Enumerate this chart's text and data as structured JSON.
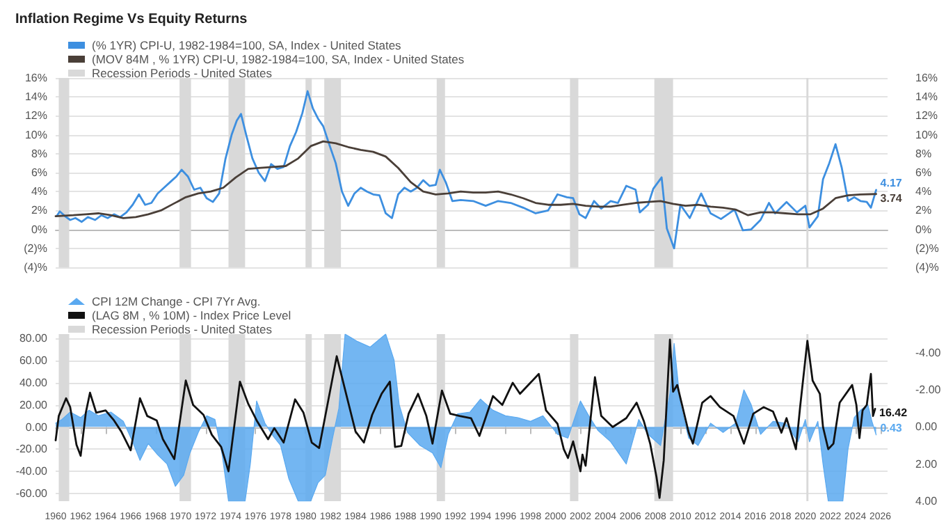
{
  "chart_data": [
    {
      "type": "line",
      "title": "Inflation Regime Vs Equity Returns",
      "xlim": [
        "1960-01",
        "2026-08"
      ],
      "ylim": [
        -4,
        16
      ],
      "yticks": [
        {
          "value": -4,
          "label": "(4)%"
        },
        {
          "value": -2,
          "label": "(2)%"
        },
        {
          "value": 0,
          "label": "0%"
        },
        {
          "value": 2,
          "label": "2%"
        },
        {
          "value": 4,
          "label": "4%"
        },
        {
          "value": 6,
          "label": "6%"
        },
        {
          "value": 8,
          "label": "8%"
        },
        {
          "value": 10,
          "label": "10%"
        },
        {
          "value": 12,
          "label": "12%"
        },
        {
          "value": 14,
          "label": "14%"
        },
        {
          "value": 16,
          "label": "16%"
        }
      ],
      "y2lim": [
        -4,
        16
      ],
      "y2ticks": [
        {
          "value": -4,
          "label": "(4)%"
        },
        {
          "value": -2,
          "label": "(2)%"
        },
        {
          "value": 0,
          "label": "0%"
        },
        {
          "value": 2,
          "label": "2%"
        },
        {
          "value": 4,
          "label": "4%"
        },
        {
          "value": 6,
          "label": "6%"
        },
        {
          "value": 8,
          "label": "8%"
        },
        {
          "value": 10,
          "label": "10%"
        },
        {
          "value": 12,
          "label": "12%"
        },
        {
          "value": 14,
          "label": "14%"
        },
        {
          "value": 16,
          "label": "16%"
        }
      ],
      "tick_labels": "y",
      "grid": "y",
      "legend": "top left",
      "marker": "none",
      "line_style": "solid",
      "series": [
        {
          "name": "(% 1YR) CPI-U, 1982-1984=100, SA, Index - United States",
          "color": "#3d8fe0",
          "x": [
            "1960-02",
            "1960-05",
            "1960-10",
            "1961-03",
            "1961-08",
            "1962-02",
            "1962-08",
            "1963-03",
            "1963-09",
            "1964-03",
            "1964-09",
            "1965-03",
            "1965-09",
            "1966-03",
            "1966-09",
            "1967-03",
            "1967-09",
            "1968-03",
            "1968-09",
            "1969-03",
            "1969-09",
            "1970-02",
            "1970-08",
            "1971-02",
            "1971-08",
            "1972-02",
            "1972-08",
            "1973-02",
            "1973-08",
            "1974-02",
            "1974-07",
            "1974-11",
            "1975-04",
            "1975-10",
            "1976-04",
            "1976-10",
            "1977-04",
            "1977-10",
            "1978-04",
            "1978-10",
            "1979-04",
            "1979-10",
            "1980-03",
            "1980-08",
            "1981-01",
            "1981-06",
            "1981-12",
            "1982-06",
            "1982-12",
            "1983-06",
            "1983-12",
            "1984-06",
            "1984-12",
            "1985-06",
            "1985-12",
            "1986-06",
            "1986-12",
            "1987-06",
            "1987-12",
            "1988-06",
            "1988-12",
            "1989-06",
            "1989-12",
            "1990-06",
            "1990-10",
            "1991-04",
            "1991-10",
            "1992-06",
            "1993-06",
            "1994-06",
            "1995-06",
            "1996-06",
            "1997-06",
            "1998-06",
            "1999-06",
            "2000-03",
            "2000-12",
            "2001-06",
            "2001-12",
            "2002-06",
            "2003-02",
            "2003-09",
            "2004-06",
            "2005-01",
            "2005-09",
            "2006-06",
            "2006-10",
            "2007-06",
            "2007-11",
            "2008-07",
            "2008-12",
            "2009-07",
            "2010-01",
            "2010-10",
            "2011-09",
            "2012-06",
            "2013-04",
            "2014-05",
            "2015-01",
            "2015-09",
            "2016-06",
            "2017-02",
            "2017-08",
            "2018-07",
            "2019-05",
            "2020-01",
            "2020-05",
            "2021-01",
            "2021-06",
            "2021-12",
            "2022-06",
            "2022-12",
            "2023-06",
            "2023-12",
            "2024-06",
            "2024-12",
            "2025-04",
            "2025-09"
          ],
          "values": [
            1.4,
            1.9,
            1.4,
            1.0,
            1.2,
            0.8,
            1.3,
            1.0,
            1.5,
            1.2,
            1.6,
            1.3,
            1.8,
            2.6,
            3.7,
            2.6,
            2.8,
            3.8,
            4.4,
            5.0,
            5.6,
            6.3,
            5.6,
            4.2,
            4.4,
            3.3,
            2.9,
            3.8,
            7.4,
            10.0,
            11.5,
            12.2,
            10.0,
            7.5,
            6.0,
            5.1,
            6.9,
            6.4,
            6.6,
            8.8,
            10.3,
            12.3,
            14.6,
            12.8,
            11.7,
            10.9,
            8.9,
            7.0,
            4.0,
            2.5,
            3.8,
            4.4,
            4.0,
            3.7,
            3.6,
            1.7,
            1.2,
            3.7,
            4.4,
            4.0,
            4.4,
            5.2,
            4.6,
            4.7,
            6.3,
            4.9,
            3.0,
            3.1,
            3.0,
            2.5,
            3.0,
            2.8,
            2.3,
            1.7,
            2.0,
            3.7,
            3.4,
            3.3,
            1.6,
            1.2,
            3.0,
            2.2,
            3.0,
            2.8,
            4.6,
            4.2,
            1.8,
            2.6,
            4.3,
            5.5,
            0.1,
            -2.0,
            2.6,
            1.2,
            3.8,
            1.7,
            1.1,
            2.1,
            -0.1,
            0.0,
            1.0,
            2.8,
            1.7,
            2.9,
            1.8,
            2.5,
            0.2,
            1.4,
            5.3,
            7.0,
            9.0,
            6.5,
            3.0,
            3.4,
            3.0,
            2.9,
            2.3,
            4.17
          ],
          "value_labels": [
            null,
            null,
            null,
            null,
            null,
            null,
            null,
            null,
            null,
            null,
            null,
            null,
            null,
            null,
            null,
            null,
            null,
            null,
            null,
            null,
            null,
            null,
            null,
            null,
            null,
            null,
            null,
            null,
            null,
            null,
            null,
            null,
            null,
            null,
            null,
            null,
            null,
            null,
            null,
            null,
            null,
            null,
            null,
            null,
            null,
            null,
            null,
            null,
            null,
            null,
            null,
            null,
            null,
            null,
            null,
            null,
            null,
            null,
            null,
            null,
            null,
            null,
            null,
            null,
            null,
            null,
            null,
            null,
            null,
            null,
            null,
            null,
            null,
            null,
            null,
            null,
            null,
            null,
            null,
            null,
            null,
            null,
            null,
            null,
            null,
            null,
            null,
            null,
            null,
            null,
            null,
            null,
            null,
            null,
            null,
            null,
            null,
            null,
            null,
            null,
            null,
            null,
            null,
            null,
            null,
            null,
            null,
            null,
            null,
            null,
            null,
            null,
            null,
            null,
            null,
            null,
            null,
            "4.17"
          ]
        },
        {
          "name": "(MOV 84M , % 1YR) CPI-U, 1982-1984=100, SA, Index - United States",
          "color": "#4a3f38",
          "x": [
            "1960-01",
            "1961-06",
            "1962-06",
            "1963-06",
            "1964-06",
            "1965-06",
            "1966-06",
            "1967-06",
            "1968-06",
            "1969-06",
            "1970-06",
            "1971-06",
            "1972-06",
            "1973-06",
            "1974-06",
            "1975-06",
            "1976-06",
            "1977-06",
            "1978-06",
            "1979-06",
            "1980-06",
            "1981-06",
            "1982-06",
            "1983-06",
            "1984-06",
            "1985-06",
            "1986-06",
            "1987-06",
            "1988-06",
            "1989-06",
            "1990-06",
            "1991-06",
            "1992-06",
            "1993-06",
            "1994-06",
            "1995-06",
            "1996-06",
            "1997-06",
            "1998-06",
            "1999-06",
            "2000-06",
            "2001-06",
            "2002-06",
            "2003-06",
            "2004-06",
            "2005-06",
            "2006-06",
            "2007-06",
            "2008-06",
            "2009-06",
            "2010-06",
            "2011-06",
            "2012-06",
            "2013-06",
            "2014-06",
            "2015-06",
            "2016-06",
            "2017-06",
            "2018-06",
            "2019-06",
            "2020-06",
            "2021-06",
            "2022-06",
            "2023-06",
            "2024-06",
            "2025-09"
          ],
          "values": [
            1.4,
            1.5,
            1.6,
            1.7,
            1.5,
            1.2,
            1.3,
            1.6,
            2.0,
            2.7,
            3.4,
            3.8,
            4.0,
            4.4,
            5.5,
            6.4,
            6.5,
            6.6,
            6.7,
            7.5,
            8.8,
            9.3,
            9.1,
            8.7,
            8.4,
            8.2,
            7.7,
            6.5,
            5.0,
            4.0,
            3.7,
            3.8,
            4.0,
            3.9,
            3.9,
            4.0,
            3.7,
            3.3,
            2.8,
            2.6,
            2.6,
            2.7,
            2.5,
            2.4,
            2.4,
            2.6,
            2.8,
            2.9,
            3.0,
            2.7,
            2.5,
            2.6,
            2.4,
            2.3,
            2.1,
            1.5,
            1.8,
            1.8,
            1.7,
            1.6,
            1.6,
            2.2,
            3.3,
            3.6,
            3.7,
            3.74
          ],
          "value_labels": [
            null,
            null,
            null,
            null,
            null,
            null,
            null,
            null,
            null,
            null,
            null,
            null,
            null,
            null,
            null,
            null,
            null,
            null,
            null,
            null,
            null,
            null,
            null,
            null,
            null,
            null,
            null,
            null,
            null,
            null,
            null,
            null,
            null,
            null,
            null,
            null,
            null,
            null,
            null,
            null,
            null,
            null,
            null,
            null,
            null,
            null,
            null,
            null,
            null,
            null,
            null,
            null,
            null,
            null,
            null,
            null,
            null,
            null,
            null,
            null,
            null,
            null,
            null,
            null,
            null,
            "3.74"
          ]
        }
      ],
      "bands": [
        {
          "axis": "x",
          "from": "1960-04",
          "to": "1961-02",
          "label": "Recession Periods - United States",
          "color": "#d9d9d9"
        },
        {
          "axis": "x",
          "from": "1969-12",
          "to": "1970-11",
          "color": "#d9d9d9"
        },
        {
          "axis": "x",
          "from": "1973-11",
          "to": "1975-03",
          "color": "#d9d9d9"
        },
        {
          "axis": "x",
          "from": "1980-01",
          "to": "1980-07",
          "color": "#d9d9d9"
        },
        {
          "axis": "x",
          "from": "1981-07",
          "to": "1982-11",
          "color": "#d9d9d9"
        },
        {
          "axis": "x",
          "from": "1990-07",
          "to": "1991-03",
          "color": "#d9d9d9"
        },
        {
          "axis": "x",
          "from": "2001-03",
          "to": "2001-11",
          "color": "#d9d9d9"
        },
        {
          "axis": "x",
          "from": "2007-12",
          "to": "2009-06",
          "color": "#d9d9d9"
        },
        {
          "axis": "x",
          "from": "2020-02",
          "to": "2020-04",
          "color": "#d9d9d9"
        }
      ]
    },
    {
      "type": "line",
      "xlim": [
        "1960-01",
        "2026-08"
      ],
      "xticks": [
        "1960",
        "1962",
        "1964",
        "1966",
        "1968",
        "1970",
        "1972",
        "1974",
        "1976",
        "1978",
        "1980",
        "1982",
        "1984",
        "1986",
        "1988",
        "1990",
        "1992",
        "1994",
        "1996",
        "1998",
        "2000",
        "2002",
        "2004",
        "2006",
        "2008",
        "2010",
        "2012",
        "2014",
        "2016",
        "2018",
        "2020",
        "2022",
        "2024",
        "2026"
      ],
      "ylim": [
        -67,
        84
      ],
      "yticks": [
        {
          "value": -60,
          "label": "-60.00"
        },
        {
          "value": -40,
          "label": "-40.00"
        },
        {
          "value": -20,
          "label": "-20.00"
        },
        {
          "value": 0,
          "label": "0.00"
        },
        {
          "value": 20,
          "label": "20.00"
        },
        {
          "value": 40,
          "label": "40.00"
        },
        {
          "value": 60,
          "label": "60.00"
        },
        {
          "value": 80,
          "label": "80.00"
        }
      ],
      "y2lim": [
        4,
        -5
      ],
      "y2ticks": [
        {
          "value": -4,
          "label": "-4.00"
        },
        {
          "value": -2,
          "label": "-2.00"
        },
        {
          "value": 0,
          "label": "0.00"
        },
        {
          "value": 2,
          "label": "2.00"
        },
        {
          "value": 4,
          "label": "4.00"
        }
      ],
      "grid": "y",
      "legend": "top left",
      "marker": "none",
      "line_style": "solid",
      "series": [
        {
          "name": "CPI 12M Change - CPI 7Yr Avg.",
          "type": "area",
          "axis": "y2",
          "color": "#5aa9f0",
          "x": [
            "1960-01",
            "1960-07",
            "1961-03",
            "1962-01",
            "1962-09",
            "1963-06",
            "1964-06",
            "1965-06",
            "1966-03",
            "1966-10",
            "1967-06",
            "1968-03",
            "1968-12",
            "1969-08",
            "1970-04",
            "1970-10",
            "1971-06",
            "1972-02",
            "1972-10",
            "1973-05",
            "1973-11",
            "1974-06",
            "1975-03",
            "1975-08",
            "1976-02",
            "1976-10",
            "1977-06",
            "1978-01",
            "1978-09",
            "1979-06",
            "1980-06",
            "1981-01",
            "1981-08",
            "1982-03",
            "1982-09",
            "1983-03",
            "1984-03",
            "1985-03",
            "1986-06",
            "1987-02",
            "1987-07",
            "1988-03",
            "1989-03",
            "1990-03",
            "1990-11",
            "1991-06",
            "1992-03",
            "1993-03",
            "1994-01",
            "1995-01",
            "1996-01",
            "1997-01",
            "1998-01",
            "1999-01",
            "2000-03",
            "2001-01",
            "2002-01",
            "2002-09",
            "2003-06",
            "2004-06",
            "2005-09",
            "2006-09",
            "2007-06",
            "2008-06",
            "2009-03",
            "2009-07",
            "2010-01",
            "2010-09",
            "2011-06",
            "2012-06",
            "2013-06",
            "2014-06",
            "2015-02",
            "2015-09",
            "2016-06",
            "2017-06",
            "2018-06",
            "2019-06",
            "2020-01",
            "2020-05",
            "2021-01",
            "2021-06",
            "2021-11",
            "2022-06",
            "2023-01",
            "2023-06",
            "2023-12",
            "2024-06",
            "2025-01",
            "2025-05",
            "2025-09"
          ],
          "values": [
            -0.2,
            -0.4,
            -0.8,
            -0.5,
            -0.9,
            -0.6,
            -0.8,
            -0.3,
            0.8,
            1.8,
            0.9,
            1.5,
            2.0,
            3.2,
            2.6,
            1.4,
            0.3,
            -0.6,
            -0.4,
            1.5,
            4,
            4,
            4,
            2.0,
            -1.4,
            -0.2,
            0.5,
            1.0,
            2.8,
            4,
            4,
            3.0,
            2.6,
            0.6,
            -1.0,
            -5,
            -4.6,
            -4.3,
            -5,
            -3.6,
            -1.2,
            0.3,
            1.0,
            1.4,
            2.2,
            0.4,
            -0.7,
            -0.8,
            -1.5,
            -0.9,
            -0.6,
            -0.5,
            -0.3,
            -0.6,
            0.4,
            0.6,
            -1.4,
            -0.6,
            0.2,
            0.8,
            2.0,
            -0.4,
            0.4,
            1.0,
            -1.8,
            -4.5,
            -1.2,
            0.6,
            1.0,
            -0.2,
            0.3,
            -0.2,
            -2.0,
            -1.2,
            0.4,
            -0.3,
            -0.2,
            0.8,
            -0.4,
            0.8,
            -0.3,
            2.0,
            4,
            4,
            4,
            1.2,
            -0.5,
            -0.9,
            -1.2,
            -0.3,
            0.43
          ],
          "value_labels": [
            null,
            null,
            null,
            null,
            null,
            null,
            null,
            null,
            null,
            null,
            null,
            null,
            null,
            null,
            null,
            null,
            null,
            null,
            null,
            null,
            null,
            null,
            null,
            null,
            null,
            null,
            null,
            null,
            null,
            null,
            null,
            null,
            null,
            null,
            null,
            null,
            null,
            null,
            null,
            null,
            null,
            null,
            null,
            null,
            null,
            null,
            null,
            null,
            null,
            null,
            null,
            null,
            null,
            null,
            null,
            null,
            null,
            null,
            null,
            null,
            null,
            null,
            null,
            null,
            null,
            null,
            null,
            null,
            null,
            null,
            null,
            null,
            null,
            null,
            null,
            null,
            null,
            null,
            null,
            null,
            null,
            null,
            null,
            null,
            null,
            null,
            null,
            null,
            null,
            null,
            "0.43"
          ]
        },
        {
          "name": "(LAG 8M , % 10M) - Index Price Level",
          "color": "#111111",
          "x": [
            "1960-01",
            "1960-04",
            "1960-11",
            "1961-03",
            "1961-09",
            "1962-01",
            "1962-06",
            "1962-10",
            "1963-04",
            "1964-01",
            "1964-09",
            "1965-04",
            "1966-01",
            "1966-10",
            "1967-05",
            "1968-02",
            "1968-08",
            "1969-07",
            "1970-06",
            "1971-01",
            "1971-11",
            "1972-07",
            "1973-04",
            "1973-11",
            "1974-10",
            "1975-06",
            "1976-02",
            "1977-01",
            "1977-07",
            "1978-04",
            "1979-03",
            "1979-11",
            "1980-07",
            "1981-02",
            "1982-07",
            "1983-04",
            "1984-01",
            "1984-09",
            "1985-05",
            "1986-02",
            "1986-10",
            "1987-03",
            "1987-09",
            "1988-04",
            "1989-01",
            "1989-09",
            "1990-03",
            "1990-12",
            "1991-08",
            "1992-05",
            "1993-04",
            "1993-12",
            "1995-01",
            "1995-10",
            "1996-08",
            "1997-03",
            "1998-09",
            "1999-04",
            "2000-03",
            "2000-09",
            "2001-01",
            "2001-06",
            "2002-01",
            "2002-03",
            "2002-06",
            "2003-03",
            "2003-09",
            "2004-08",
            "2005-09",
            "2006-07",
            "2007-02",
            "2007-08",
            "2008-02",
            "2008-05",
            "2008-09",
            "2009-03",
            "2009-06",
            "2009-10",
            "2010-09",
            "2011-01",
            "2011-10",
            "2012-06",
            "2013-03",
            "2014-04",
            "2015-02",
            "2015-11",
            "2016-09",
            "2017-06",
            "2018-02",
            "2018-07",
            "2019-04",
            "2019-08",
            "2020-03",
            "2020-08",
            "2021-03",
            "2021-06",
            "2021-11",
            "2022-04",
            "2022-10",
            "2023-10",
            "2024-02",
            "2024-05",
            "2024-08",
            "2024-12",
            "2025-04",
            "2025-06",
            "2025-08"
          ],
          "values": [
            -12,
            10,
            26,
            18,
            -16,
            -26,
            13,
            31,
            13,
            15,
            6,
            -4,
            -21,
            26,
            10,
            6,
            -11,
            -29,
            42,
            20,
            11,
            -7,
            -18,
            -40,
            41,
            21,
            6,
            -11,
            -1,
            -14,
            25,
            13,
            -14,
            -19,
            64,
            30,
            -4,
            -14,
            11,
            30,
            41,
            -18,
            -17,
            12,
            30,
            10,
            -15,
            33,
            12,
            10,
            8,
            -8,
            28,
            20,
            40,
            30,
            48,
            15,
            3,
            -20,
            -28,
            -13,
            -40,
            -25,
            -35,
            45,
            10,
            0,
            8,
            22,
            5,
            -15,
            -45,
            -64,
            -30,
            79,
            32,
            38,
            -5,
            -15,
            22,
            28,
            18,
            10,
            -15,
            12,
            18,
            14,
            -5,
            8,
            -20,
            18,
            78,
            42,
            30,
            0,
            -20,
            -15,
            22,
            38,
            20,
            -10,
            15,
            20,
            48,
            10,
            16.42
          ],
          "value_labels": [
            null,
            null,
            null,
            null,
            null,
            null,
            null,
            null,
            null,
            null,
            null,
            null,
            null,
            null,
            null,
            null,
            null,
            null,
            null,
            null,
            null,
            null,
            null,
            null,
            null,
            null,
            null,
            null,
            null,
            null,
            null,
            null,
            null,
            null,
            null,
            null,
            null,
            null,
            null,
            null,
            null,
            null,
            null,
            null,
            null,
            null,
            null,
            null,
            null,
            null,
            null,
            null,
            null,
            null,
            null,
            null,
            null,
            null,
            null,
            null,
            null,
            null,
            null,
            null,
            null,
            null,
            null,
            null,
            null,
            null,
            null,
            null,
            null,
            null,
            null,
            null,
            null,
            null,
            null,
            null,
            null,
            null,
            null,
            null,
            null,
            null,
            null,
            null,
            null,
            null,
            null,
            null,
            null,
            null,
            null,
            null,
            null,
            null,
            null,
            null,
            null,
            null,
            null,
            null,
            null,
            null,
            "16.42"
          ]
        }
      ],
      "bands": [
        {
          "axis": "x",
          "from": "1960-04",
          "to": "1961-02",
          "label": "Recession Periods - United States",
          "color": "#d9d9d9"
        },
        {
          "axis": "x",
          "from": "1969-12",
          "to": "1970-11",
          "color": "#d9d9d9"
        },
        {
          "axis": "x",
          "from": "1973-11",
          "to": "1975-03",
          "color": "#d9d9d9"
        },
        {
          "axis": "x",
          "from": "1980-01",
          "to": "1980-07",
          "color": "#d9d9d9"
        },
        {
          "axis": "x",
          "from": "1981-07",
          "to": "1982-11",
          "color": "#d9d9d9"
        },
        {
          "axis": "x",
          "from": "1990-07",
          "to": "1991-03",
          "color": "#d9d9d9"
        },
        {
          "axis": "x",
          "from": "2001-03",
          "to": "2001-11",
          "color": "#d9d9d9"
        },
        {
          "axis": "x",
          "from": "2007-12",
          "to": "2009-06",
          "color": "#d9d9d9"
        },
        {
          "axis": "x",
          "from": "2020-02",
          "to": "2020-04",
          "color": "#d9d9d9"
        }
      ]
    }
  ]
}
